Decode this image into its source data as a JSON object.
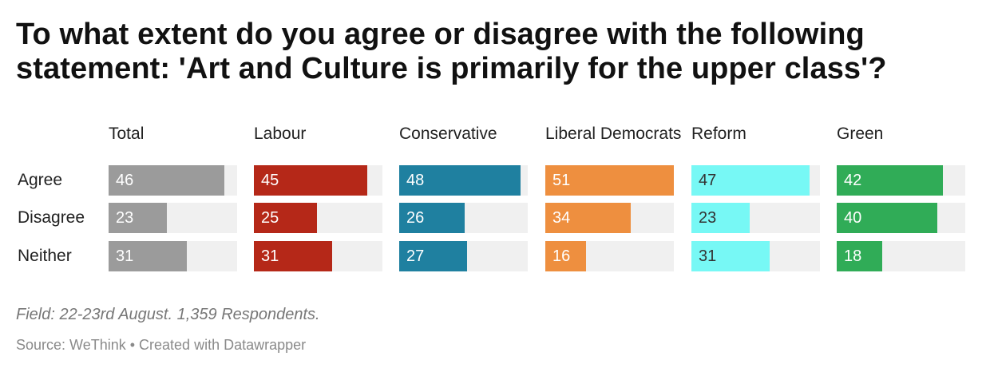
{
  "chart_data": {
    "type": "bar",
    "title": "To what extent do you agree or disagree with the following statement: 'Art and Culture is primarily for the upper class'?",
    "categories": [
      "Agree",
      "Disagree",
      "Neither"
    ],
    "series": [
      {
        "name": "Total",
        "color": "#9b9b9b",
        "text_color": "#ffffff",
        "values": [
          46,
          23,
          31
        ]
      },
      {
        "name": "Labour",
        "color": "#b52818",
        "text_color": "#ffffff",
        "values": [
          45,
          25,
          31
        ]
      },
      {
        "name": "Conservative",
        "color": "#1f80a0",
        "text_color": "#ffffff",
        "values": [
          48,
          26,
          27
        ]
      },
      {
        "name": "Liberal Democrats",
        "color": "#ee8f3f",
        "text_color": "#ffffff",
        "values": [
          51,
          34,
          16
        ]
      },
      {
        "name": "Reform",
        "color": "#77f8f5",
        "text_color": "#333333",
        "values": [
          47,
          23,
          31
        ]
      },
      {
        "name": "Green",
        "color": "#30ac57",
        "text_color": "#ffffff",
        "values": [
          42,
          40,
          18
        ]
      }
    ],
    "xlim": [
      0,
      51
    ],
    "notes": "Field: 22-23rd August. 1,359 Respondents.",
    "source": "Source: WeThink • Created with Datawrapper"
  }
}
